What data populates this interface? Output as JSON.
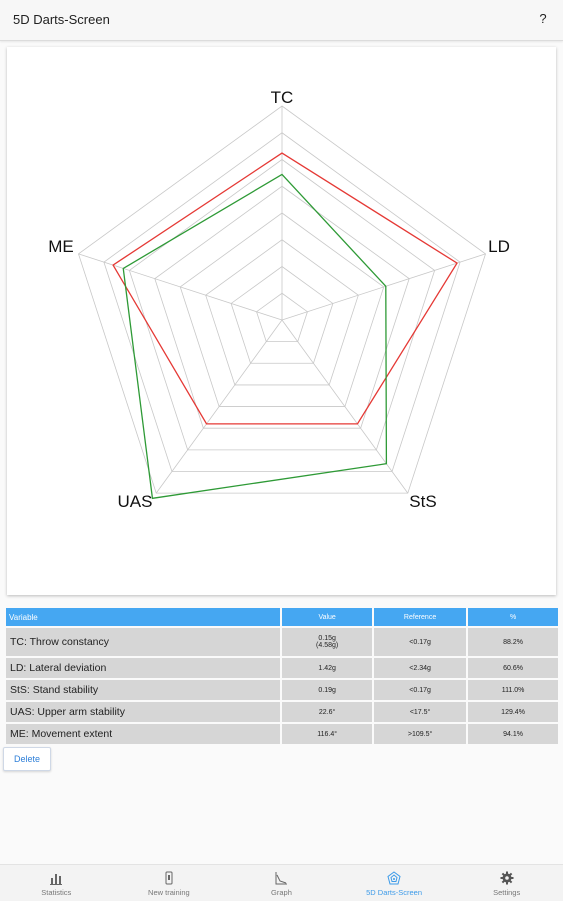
{
  "app": {
    "title": "5D Darts-Screen",
    "help_label": "?"
  },
  "radar": {
    "axes": [
      "TC",
      "LD",
      "StS",
      "UAS",
      "ME"
    ],
    "rings": 8,
    "series": [
      {
        "color": "#e53935",
        "values": [
          0.78,
          0.86,
          0.6,
          0.6,
          0.83
        ]
      },
      {
        "color": "#2e9a36",
        "values": [
          0.68,
          0.51,
          0.83,
          1.03,
          0.78
        ]
      }
    ]
  },
  "table": {
    "headers": [
      "Variable",
      "Value",
      "Reference",
      "%"
    ],
    "rows": [
      {
        "variable": "TC: Throw constancy",
        "value_line1": "0.15g",
        "value_line2": "(4.58g)",
        "reference": "<0.17g",
        "percent": "88.2%"
      },
      {
        "variable": "LD: Lateral deviation",
        "value_line1": "1.42g",
        "value_line2": "",
        "reference": "<2.34g",
        "percent": "60.6%"
      },
      {
        "variable": "StS: Stand stability",
        "value_line1": "0.19g",
        "value_line2": "",
        "reference": "<0.17g",
        "percent": "111.0%"
      },
      {
        "variable": "UAS: Upper arm stability",
        "value_line1": "22.6°",
        "value_line2": "",
        "reference": "<17.5°",
        "percent": "129.4%"
      },
      {
        "variable": "ME: Movement extent",
        "value_line1": "116.4°",
        "value_line2": "",
        "reference": ">109.5°",
        "percent": "94.1%"
      }
    ]
  },
  "delete_label": "Delete",
  "nav": [
    {
      "label": "Statistics",
      "icon": "bar-chart-icon",
      "active": false
    },
    {
      "label": "New training",
      "icon": "phone-icon",
      "active": false
    },
    {
      "label": "Graph",
      "icon": "line-graph-icon",
      "active": false
    },
    {
      "label": "5D Darts-Screen",
      "icon": "radar-icon",
      "active": true
    },
    {
      "label": "Settings",
      "icon": "gear-icon",
      "active": false
    }
  ],
  "colors": {
    "accent": "#3d9be9",
    "header_bg": "#45a7f2",
    "cell_bg": "#d6d6d6",
    "grid": "#c8c8c8"
  }
}
